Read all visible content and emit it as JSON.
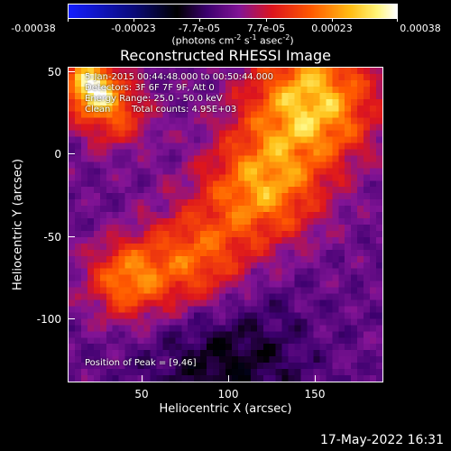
{
  "colorbar": {
    "ticks": [
      "-0.00038",
      "-0.00023",
      "-7.7e-05",
      "7.7e-05",
      "0.00023",
      "0.00038"
    ],
    "units_prefix": "(photons cm",
    "units_exp1": "-2",
    "units_mid1": " s",
    "units_exp2": "-1",
    "units_mid2": " asec",
    "units_exp3": "-2",
    "units_suffix": ")"
  },
  "chart_data": {
    "type": "heatmap",
    "title": "Reconstructed RHESSI Image",
    "xlabel": "Heliocentric X (arcsec)",
    "ylabel": "Heliocentric Y (arcsec)",
    "xlim": [
      0,
      193
    ],
    "ylim": [
      -138,
      55
    ],
    "xticks": [
      "50",
      "100",
      "150"
    ],
    "yticks": [
      "50",
      "0",
      "-50",
      "-100"
    ],
    "clim": [
      -0.00038,
      0.00038
    ],
    "colormap": "rainbow-black-purple-red-yellow-white",
    "peak_position": [
      9,
      46
    ],
    "annotations": {
      "time_range": "5-Jan-2015 00:44:48.000 to 00:50:44.000",
      "detectors": "Detectors: 3F 6F 7F 9F, Att 0",
      "energy_range": "Energy Range: 25.0 - 50.0 keV",
      "algorithm": "Clean",
      "total_counts": "Total counts: 4.95E+03",
      "peak": "Position of Peak = [9,46]"
    }
  },
  "footer": {
    "timestamp": "17-May-2022 16:31"
  }
}
